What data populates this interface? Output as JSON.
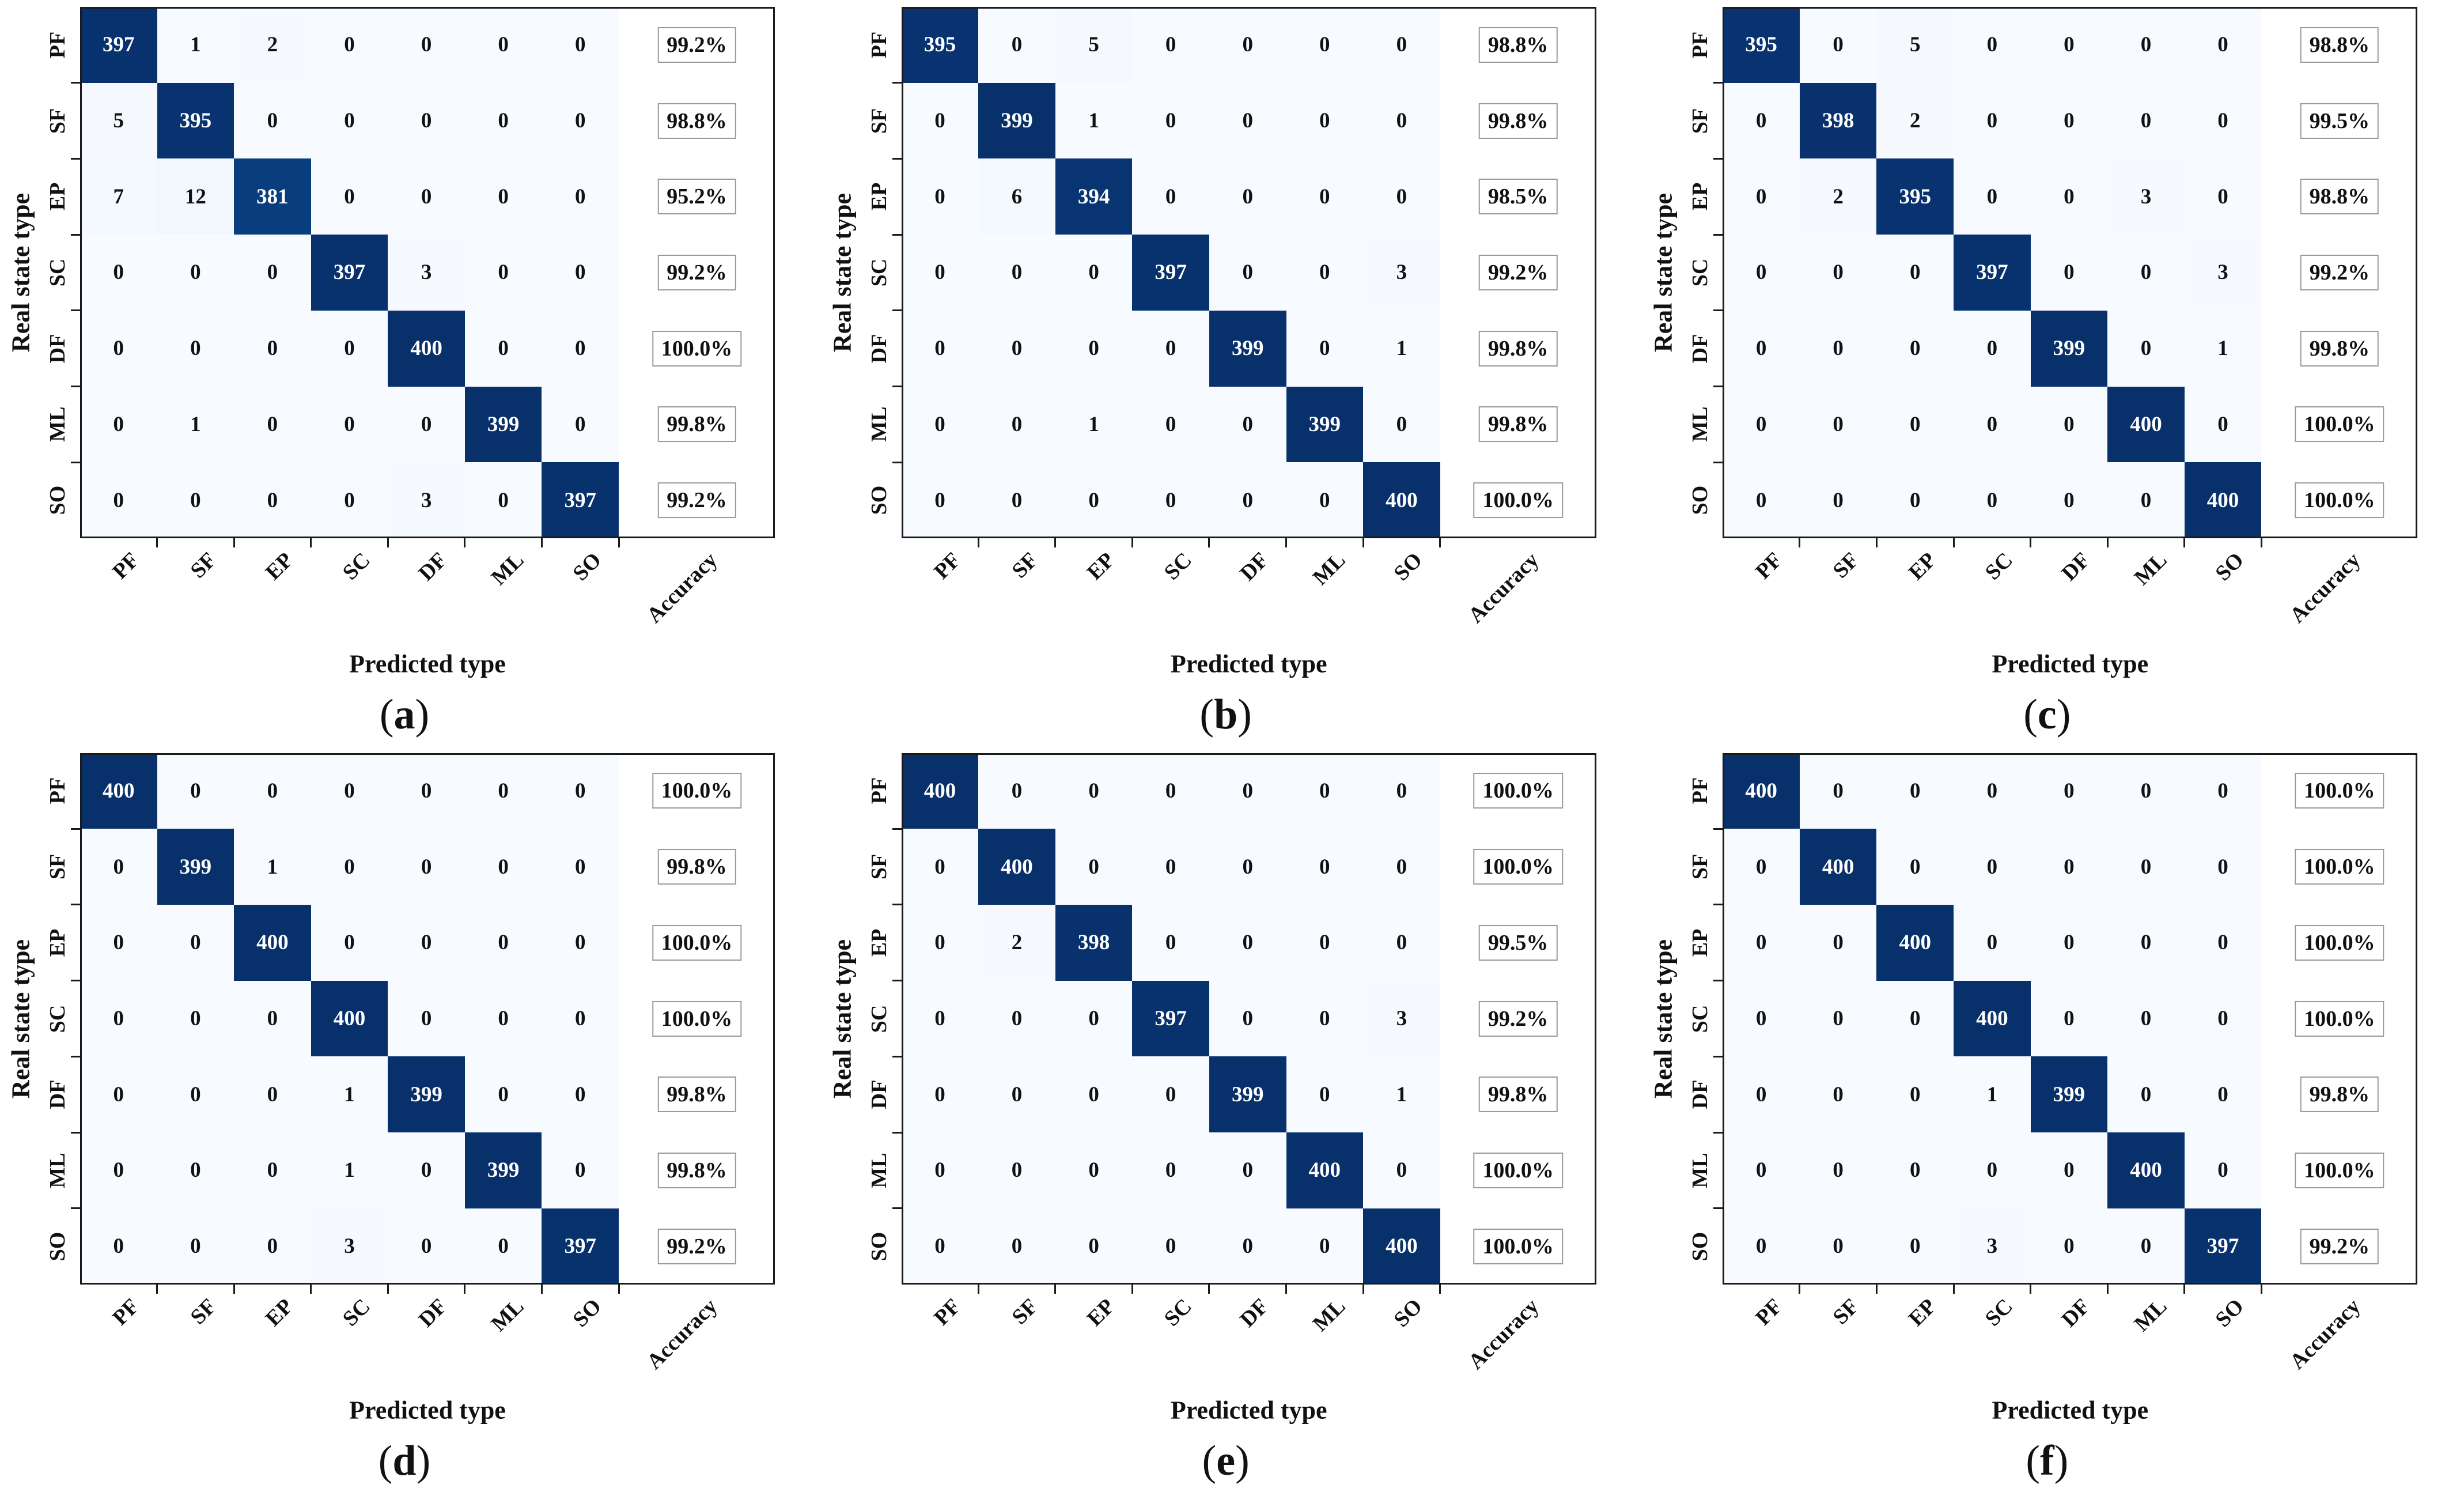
{
  "figure": {
    "caption_open": "(",
    "caption_close": ")",
    "colors": {
      "colormap_min": "#f7fbff",
      "colormap_max": "#08306b",
      "cell_text_dark": "#111111",
      "cell_text_light": "#ffffff",
      "spine": "#1a1a1a",
      "accuracy_box_border": "#9a9a9a",
      "accuracy_box_bg": "#ffffff"
    }
  },
  "chart_data": {
    "type": "heatmap",
    "x_categories": [
      "PF",
      "SF",
      "EP",
      "SC",
      "DF",
      "ML",
      "SO",
      "Accuracy"
    ],
    "y_categories": [
      "PF",
      "SF",
      "EP",
      "SC",
      "DF",
      "ML",
      "SO"
    ],
    "xlabel": "Predicted type",
    "ylabel": "Real state type",
    "color_range": [
      0,
      400
    ],
    "colormap": "Blues",
    "grid": false,
    "panels": [
      {
        "label": "a",
        "matrix": [
          [
            397,
            1,
            2,
            0,
            0,
            0,
            0
          ],
          [
            5,
            395,
            0,
            0,
            0,
            0,
            0
          ],
          [
            7,
            12,
            381,
            0,
            0,
            0,
            0
          ],
          [
            0,
            0,
            0,
            397,
            3,
            0,
            0
          ],
          [
            0,
            0,
            0,
            0,
            400,
            0,
            0
          ],
          [
            0,
            1,
            0,
            0,
            0,
            399,
            0
          ],
          [
            0,
            0,
            0,
            0,
            3,
            0,
            397
          ]
        ],
        "accuracy": [
          "99.2%",
          "98.8%",
          "95.2%",
          "99.2%",
          "100.0%",
          "99.8%",
          "99.2%"
        ]
      },
      {
        "label": "b",
        "matrix": [
          [
            395,
            0,
            5,
            0,
            0,
            0,
            0
          ],
          [
            0,
            399,
            1,
            0,
            0,
            0,
            0
          ],
          [
            0,
            6,
            394,
            0,
            0,
            0,
            0
          ],
          [
            0,
            0,
            0,
            397,
            0,
            0,
            3
          ],
          [
            0,
            0,
            0,
            0,
            399,
            0,
            1
          ],
          [
            0,
            0,
            1,
            0,
            0,
            399,
            0
          ],
          [
            0,
            0,
            0,
            0,
            0,
            0,
            400
          ]
        ],
        "accuracy": [
          "98.8%",
          "99.8%",
          "98.5%",
          "99.2%",
          "99.8%",
          "99.8%",
          "100.0%"
        ]
      },
      {
        "label": "c",
        "matrix": [
          [
            395,
            0,
            5,
            0,
            0,
            0,
            0
          ],
          [
            0,
            398,
            2,
            0,
            0,
            0,
            0
          ],
          [
            0,
            2,
            395,
            0,
            0,
            3,
            0
          ],
          [
            0,
            0,
            0,
            397,
            0,
            0,
            3
          ],
          [
            0,
            0,
            0,
            0,
            399,
            0,
            1
          ],
          [
            0,
            0,
            0,
            0,
            0,
            400,
            0
          ],
          [
            0,
            0,
            0,
            0,
            0,
            0,
            400
          ]
        ],
        "accuracy": [
          "98.8%",
          "99.5%",
          "98.8%",
          "99.2%",
          "99.8%",
          "100.0%",
          "100.0%"
        ]
      },
      {
        "label": "d",
        "matrix": [
          [
            400,
            0,
            0,
            0,
            0,
            0,
            0
          ],
          [
            0,
            399,
            1,
            0,
            0,
            0,
            0
          ],
          [
            0,
            0,
            400,
            0,
            0,
            0,
            0
          ],
          [
            0,
            0,
            0,
            400,
            0,
            0,
            0
          ],
          [
            0,
            0,
            0,
            1,
            399,
            0,
            0
          ],
          [
            0,
            0,
            0,
            1,
            0,
            399,
            0
          ],
          [
            0,
            0,
            0,
            3,
            0,
            0,
            397
          ]
        ],
        "accuracy": [
          "100.0%",
          "99.8%",
          "100.0%",
          "100.0%",
          "99.8%",
          "99.8%",
          "99.2%"
        ]
      },
      {
        "label": "e",
        "matrix": [
          [
            400,
            0,
            0,
            0,
            0,
            0,
            0
          ],
          [
            0,
            400,
            0,
            0,
            0,
            0,
            0
          ],
          [
            0,
            2,
            398,
            0,
            0,
            0,
            0
          ],
          [
            0,
            0,
            0,
            397,
            0,
            0,
            3
          ],
          [
            0,
            0,
            0,
            0,
            399,
            0,
            1
          ],
          [
            0,
            0,
            0,
            0,
            0,
            400,
            0
          ],
          [
            0,
            0,
            0,
            0,
            0,
            0,
            400
          ]
        ],
        "accuracy": [
          "100.0%",
          "100.0%",
          "99.5%",
          "99.2%",
          "99.8%",
          "100.0%",
          "100.0%"
        ]
      },
      {
        "label": "f",
        "matrix": [
          [
            400,
            0,
            0,
            0,
            0,
            0,
            0
          ],
          [
            0,
            400,
            0,
            0,
            0,
            0,
            0
          ],
          [
            0,
            0,
            400,
            0,
            0,
            0,
            0
          ],
          [
            0,
            0,
            0,
            400,
            0,
            0,
            0
          ],
          [
            0,
            0,
            0,
            1,
            399,
            0,
            0
          ],
          [
            0,
            0,
            0,
            0,
            0,
            400,
            0
          ],
          [
            0,
            0,
            0,
            3,
            0,
            0,
            397
          ]
        ],
        "accuracy": [
          "100.0%",
          "100.0%",
          "100.0%",
          "100.0%",
          "99.8%",
          "100.0%",
          "99.2%"
        ]
      }
    ]
  }
}
